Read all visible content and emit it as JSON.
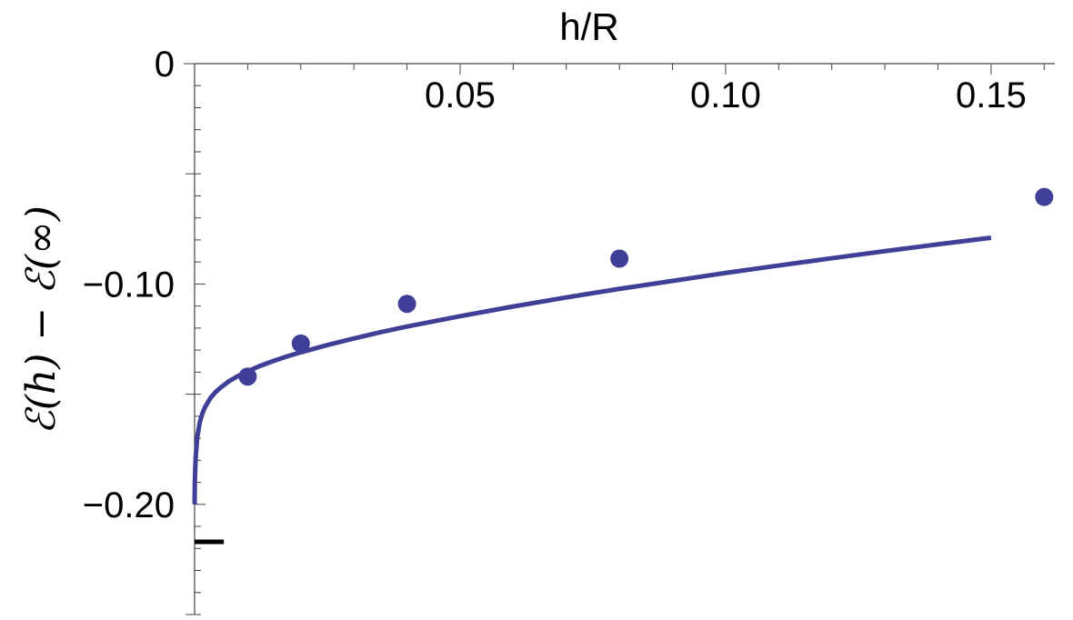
{
  "chart_data": {
    "type": "line",
    "xlabel": "h/R",
    "ylabel": "ℰ(h) − ℰ(∞)",
    "xlim": [
      0,
      0.162
    ],
    "ylim": [
      -0.25,
      0
    ],
    "x_ticks": [
      {
        "value": 0.05,
        "label": "0.05"
      },
      {
        "value": 0.1,
        "label": "0.10"
      },
      {
        "value": 0.15,
        "label": "0.15"
      }
    ],
    "y_ticks": [
      {
        "value": 0,
        "label": "0"
      },
      {
        "value": -0.1,
        "label": "−0.10"
      },
      {
        "value": -0.2,
        "label": "−0.20"
      }
    ],
    "grid": false,
    "series": [
      {
        "kind": "line",
        "color": "#3f3f98",
        "x": [
          0.0,
          5e-05,
          0.0002,
          0.0005,
          0.001,
          0.0015,
          0.002,
          0.003,
          0.004,
          0.005,
          0.0065,
          0.008,
          0.01,
          0.0125,
          0.015,
          0.0175,
          0.02,
          0.025,
          0.03,
          0.035,
          0.04,
          0.05,
          0.06,
          0.07,
          0.08,
          0.09,
          0.1,
          0.11,
          0.12,
          0.13,
          0.14,
          0.15
        ],
        "y": [
          -0.2,
          -0.1893,
          -0.1787,
          -0.1695,
          -0.1625,
          -0.1585,
          -0.1557,
          -0.1517,
          -0.1489,
          -0.1468,
          -0.1441,
          -0.142,
          -0.1396,
          -0.137,
          -0.1348,
          -0.1328,
          -0.131,
          -0.1277,
          -0.1247,
          -0.1219,
          -0.1193,
          -0.1146,
          -0.1102,
          -0.1061,
          -0.1022,
          -0.0986,
          -0.095,
          -0.0916,
          -0.0883,
          -0.0851,
          -0.082,
          -0.079
        ]
      },
      {
        "kind": "scatter",
        "color": "#3f3f98",
        "x": [
          0.01,
          0.02,
          0.04,
          0.08,
          0.16
        ],
        "y": [
          -0.142,
          -0.127,
          -0.109,
          -0.0885,
          -0.0605
        ]
      }
    ],
    "annotations": [
      {
        "kind": "marker",
        "y": -0.217,
        "x_from": 0,
        "x_to": 0.005,
        "color": "#000000"
      }
    ]
  }
}
